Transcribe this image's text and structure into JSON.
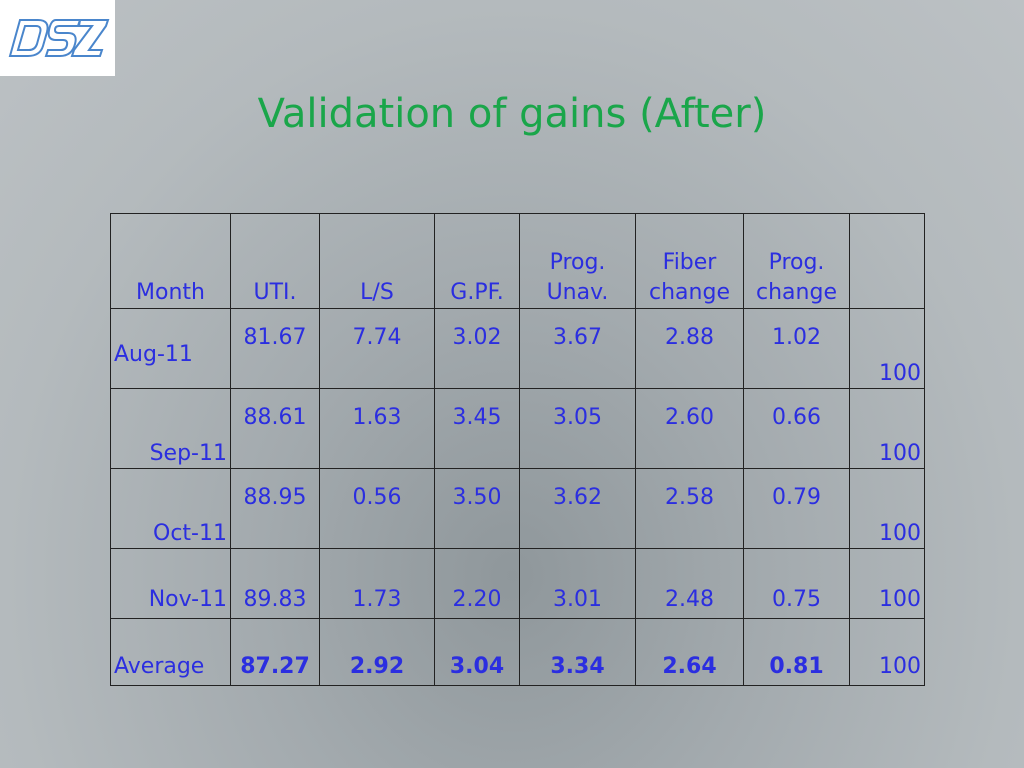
{
  "slide": {
    "title": "Validation of gains (After)",
    "logo_text": "DSZ"
  },
  "table": {
    "headers": {
      "month": "Month",
      "uti": "UTI.",
      "ls": "L/S",
      "gpf": "G.PF.",
      "prog_unav_1": "Prog.",
      "prog_unav_2": "Unav.",
      "fiber_change_1": "Fiber",
      "fiber_change_2": "change",
      "prog_change_1": "Prog.",
      "prog_change_2": "change"
    },
    "rows": [
      {
        "month": "Aug-11",
        "uti": "81.67",
        "ls": "7.74",
        "gpf": "3.02",
        "prog_unav": "3.67",
        "fiber_change": "2.88",
        "prog_change": "1.02",
        "total": "100"
      },
      {
        "month": "Sep-11",
        "uti": "88.61",
        "ls": "1.63",
        "gpf": "3.45",
        "prog_unav": "3.05",
        "fiber_change": "2.60",
        "prog_change": "0.66",
        "total": "100"
      },
      {
        "month": "Oct-11",
        "uti": "88.95",
        "ls": "0.56",
        "gpf": "3.50",
        "prog_unav": "3.62",
        "fiber_change": "2.58",
        "prog_change": "0.79",
        "total": "100"
      },
      {
        "month": "Nov-11",
        "uti": "89.83",
        "ls": "1.73",
        "gpf": "2.20",
        "prog_unav": "3.01",
        "fiber_change": "2.48",
        "prog_change": "0.75",
        "total": "100"
      }
    ],
    "average": {
      "month": "Average",
      "uti": "87.27",
      "ls": "2.92",
      "gpf": "3.04",
      "prog_unav": "3.34",
      "fiber_change": "2.64",
      "prog_change": "0.81",
      "total": "100"
    }
  },
  "colors": {
    "title": "#1aa64a",
    "table_text": "#2b2ee0",
    "logo_stroke": "#3f7fc8"
  }
}
